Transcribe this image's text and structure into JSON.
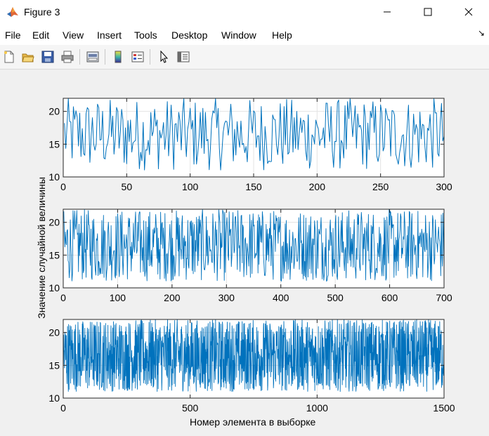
{
  "window": {
    "title": "Figure 3",
    "icon": "matlab-logo-icon"
  },
  "menu": [
    "File",
    "Edit",
    "View",
    "Insert",
    "Tools",
    "Desktop",
    "Window",
    "Help"
  ],
  "toolbar": {
    "buttons": [
      "new-figure-icon",
      "open-file-icon",
      "save-icon",
      "print-icon",
      "print-preview-icon",
      "colorbar-icon",
      "legend-icon",
      "select-pointer-icon",
      "property-editor-icon"
    ]
  },
  "colors": {
    "line": "#0072BD",
    "axes_bg": "#ffffff",
    "figure_bg": "#f0f0f0"
  },
  "chart_data": [
    {
      "type": "line",
      "n_points": 300,
      "xlim": [
        0,
        300
      ],
      "ylim": [
        10,
        22
      ],
      "xticks": [
        "0",
        "50",
        "100",
        "150",
        "200",
        "250",
        "300"
      ],
      "yticks": [
        "10",
        "15",
        "20"
      ],
      "grid": true,
      "value_range_estimate": [
        11,
        22
      ]
    },
    {
      "type": "line",
      "n_points": 700,
      "xlim": [
        0,
        700
      ],
      "ylim": [
        10,
        22
      ],
      "xticks": [
        "0",
        "100",
        "200",
        "300",
        "400",
        "500",
        "600",
        "700"
      ],
      "yticks": [
        "10",
        "15",
        "20"
      ],
      "grid": true,
      "value_range_estimate": [
        11,
        22
      ]
    },
    {
      "type": "line",
      "n_points": 1500,
      "xlim": [
        0,
        1500
      ],
      "ylim": [
        10,
        22
      ],
      "xticks": [
        "0",
        "500",
        "1000",
        "1500"
      ],
      "yticks": [
        "10",
        "15",
        "20"
      ],
      "grid": true,
      "value_range_estimate": [
        11,
        22
      ]
    }
  ],
  "labels": {
    "ylabel": "Значение случайной величины",
    "xlabel": "Номер элемента в выборке"
  }
}
